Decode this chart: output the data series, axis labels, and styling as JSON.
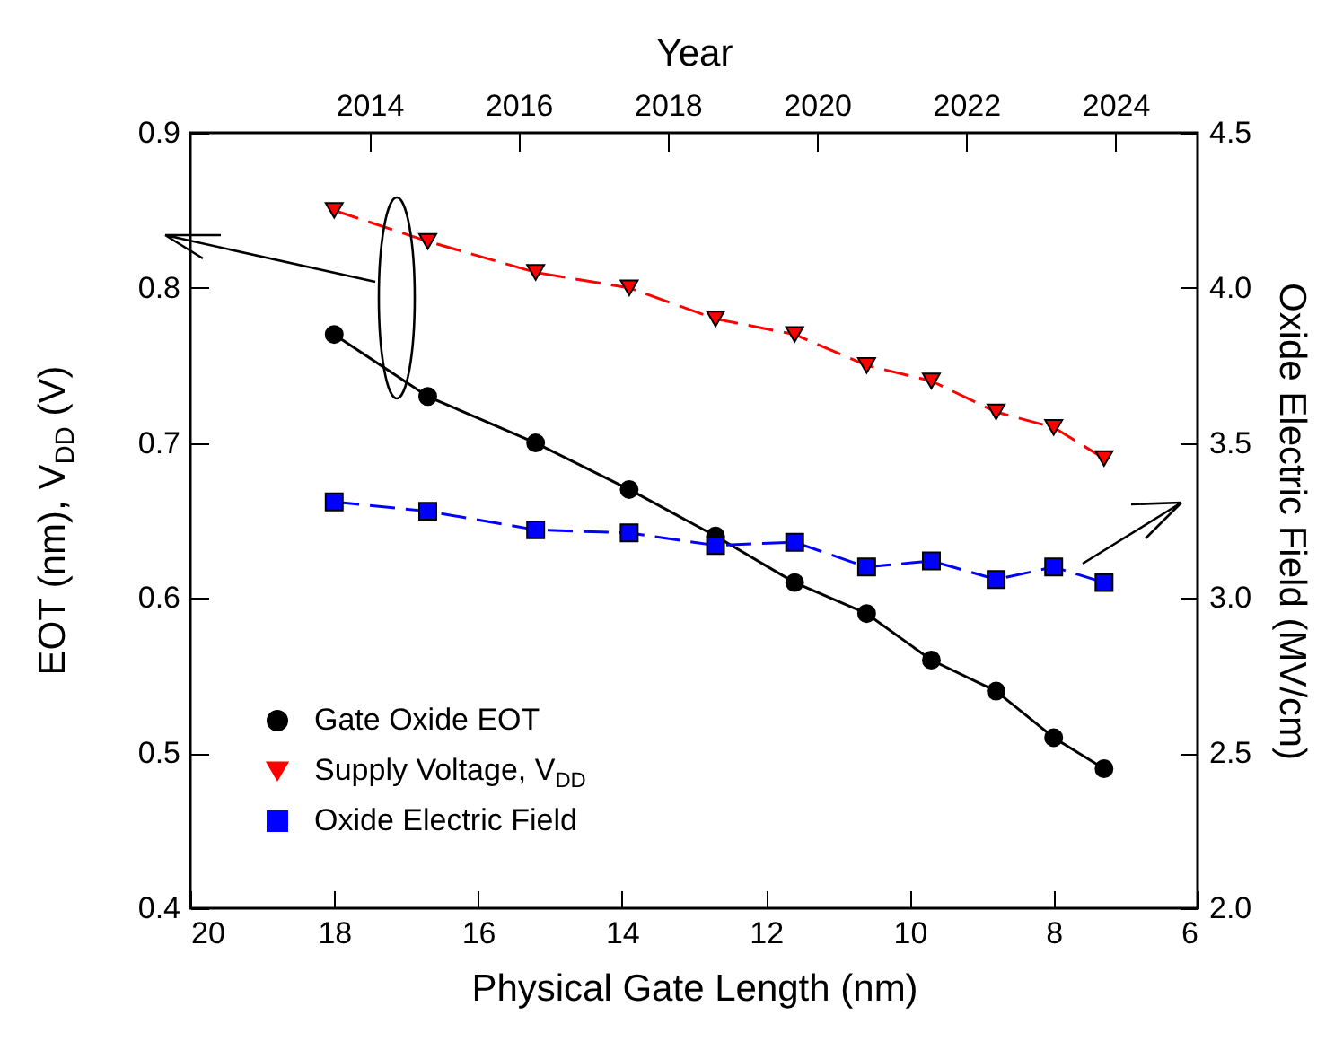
{
  "chart_data": {
    "type": "line",
    "xlabel": "Physical Gate Length (nm)",
    "ylabel": "EOT (nm),   V$_{DD}$ (V)",
    "y2label": "Oxide Electric Field (MV/cm)",
    "x2label": "Year",
    "x": [
      18.0,
      16.7,
      15.2,
      13.9,
      12.7,
      11.6,
      10.6,
      9.7,
      8.8,
      8.0,
      7.3
    ],
    "series": [
      {
        "name": "Gate Oxide EOT",
        "color": "#000000",
        "marker": "circle",
        "line_style": "solid",
        "values": [
          0.77,
          0.73,
          0.7,
          0.67,
          0.64,
          0.61,
          0.59,
          0.56,
          0.54,
          0.51,
          0.49
        ]
      },
      {
        "name": "Supply Voltage, V$_{DD}$",
        "color": "#ff0000",
        "marker": "triangle",
        "line_style": "dashed",
        "values": [
          0.85,
          0.83,
          0.81,
          0.8,
          0.78,
          0.77,
          0.75,
          0.74,
          0.72,
          0.71,
          0.69
        ]
      },
      {
        "name": "Oxide Electric Field",
        "color": "#0000ff",
        "marker": "square",
        "line_style": "dashed",
        "axis": "y2",
        "values": [
          3.31,
          3.28,
          3.22,
          3.21,
          3.17,
          3.18,
          3.1,
          3.12,
          3.06,
          3.1,
          3.05
        ]
      }
    ],
    "xlim": [
      20,
      6
    ],
    "xticks": [
      20,
      18,
      16,
      14,
      12,
      10,
      8,
      6
    ],
    "x2lim": [
      2011.6,
      2025.1
    ],
    "x2ticks": [
      2014,
      2016,
      2018,
      2020,
      2022,
      2024
    ],
    "ylim": [
      0.4,
      0.9
    ],
    "yticks": [
      0.4,
      0.5,
      0.6,
      0.7,
      0.8,
      0.9
    ],
    "y2lim": [
      2.0,
      4.5
    ],
    "y2ticks": [
      {
        "value": 2.0,
        "label": "2.0"
      },
      {
        "value": 2.5,
        "label": "2.5"
      },
      {
        "value": 3.0,
        "label": "3.0"
      },
      {
        "value": 3.5,
        "label": "3.5"
      },
      {
        "value": 4.0,
        "label": "4.0"
      },
      {
        "value": 4.5,
        "label": "4.5"
      }
    ],
    "grid": false,
    "legend": "bottom left"
  }
}
